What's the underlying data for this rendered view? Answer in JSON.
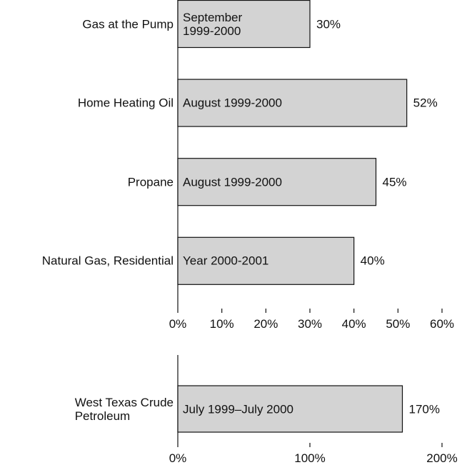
{
  "chart_data": [
    {
      "type": "barh",
      "categories": [
        "Gas at the Pump",
        "Home Heating Oil",
        "Propane",
        "Natural Gas, Residential"
      ],
      "values": [
        30,
        52,
        45,
        40
      ],
      "value_labels": [
        "30%",
        "52%",
        "45%",
        "40%"
      ],
      "bar_labels": [
        "September\n1999-2000",
        "August 1999-2000",
        "August 1999-2000",
        "Year 2000-2001"
      ],
      "color": "#d3d3d3",
      "xlim": [
        0,
        60
      ],
      "xticks": [
        {
          "value": 0,
          "label": "0%"
        },
        {
          "value": 10,
          "label": "10%"
        },
        {
          "value": 20,
          "label": "20%"
        },
        {
          "value": 30,
          "label": "30%"
        },
        {
          "value": 40,
          "label": "40%"
        },
        {
          "value": 50,
          "label": "50%"
        },
        {
          "value": 60,
          "label": "60%"
        }
      ]
    },
    {
      "type": "barh",
      "categories": [
        "West Texas Crude\nPetroleum"
      ],
      "values": [
        170
      ],
      "value_labels": [
        "170%"
      ],
      "bar_labels": [
        "July 1999–July 2000"
      ],
      "color": "#d3d3d3",
      "xlim": [
        0,
        200
      ],
      "xticks": [
        {
          "value": 0,
          "label": "0%"
        },
        {
          "value": 100,
          "label": "100%"
        },
        {
          "value": 200,
          "label": "200%"
        }
      ]
    }
  ]
}
